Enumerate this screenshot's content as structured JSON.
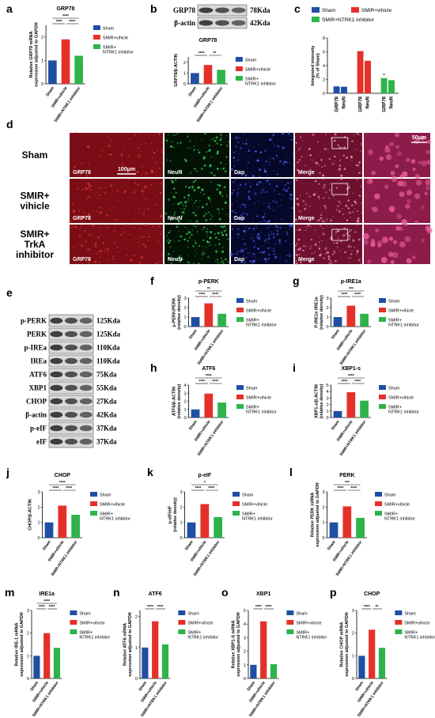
{
  "panel_labels": [
    "a",
    "b",
    "c",
    "d",
    "e",
    "f",
    "g",
    "h",
    "i",
    "j",
    "k",
    "l",
    "m",
    "n",
    "o",
    "p"
  ],
  "blot_b": [
    {
      "protein": "GRP78",
      "size": "78Kda"
    },
    {
      "protein": "β-actin",
      "size": "42Kda"
    }
  ],
  "images_d": {
    "rows": [
      "Sham",
      "SMIR+ vihicle",
      "SMIR+ TrkA inhibitor"
    ],
    "channels": [
      "GRP78",
      "NeuN",
      "Dap",
      "Merge"
    ],
    "scale_bars": [
      "100μm",
      "50μm"
    ]
  },
  "blot_e": [
    {
      "protein": "p-PERK",
      "size": "125Kda"
    },
    {
      "protein": "PERK",
      "size": "125Kda"
    },
    {
      "protein": "p-IREa",
      "size": "110Kda"
    },
    {
      "protein": "IREa",
      "size": "110Kda"
    },
    {
      "protein": "ATF6",
      "size": "75Kda"
    },
    {
      "protein": "XBP1",
      "size": "55Kda"
    },
    {
      "protein": "CHOP",
      "size": "27Kda"
    },
    {
      "protein": "β-actin",
      "size": "42Kda"
    },
    {
      "protein": "p-eIF",
      "size": "37Kda"
    },
    {
      "protein": "eIF",
      "size": "37Kda"
    }
  ],
  "chart_data": [
    {
      "type": "bar",
      "title": "GRP78",
      "y_label": "Relative GRP78 mRNA expression adjusted to GAPDH",
      "categories": [
        "Sham",
        "SMIR+vihicle",
        "SMIR+NTRK1 inhibitor"
      ],
      "values": [
        1,
        1.9,
        1.2
      ],
      "colors": [
        "#1f4fa3",
        "#e5302a",
        "#2db34a"
      ],
      "legend": [
        "Sham",
        "SMIR+vihicle",
        "SMIR+ NTRK1 inhibitor"
      ],
      "legend_position": "right",
      "ylim": [
        0,
        2.5
      ],
      "yticks": [
        0,
        1,
        2
      ],
      "significance": [
        "****",
        "****",
        "****"
      ]
    },
    {
      "type": "bar",
      "title": "GRP78",
      "y_label": "GRP78/β-ACTIN",
      "categories": [
        "Sham",
        "SMIR+vihicle",
        "SMIR+NTRK1 inhibitor"
      ],
      "values": [
        1,
        1.75,
        1.3
      ],
      "colors": [
        "#1f4fa3",
        "#e5302a",
        "#2db34a"
      ],
      "legend": [
        "Sham",
        "SMIR+vihicle",
        "SMIR+ NTRK1 inhibitor"
      ],
      "legend_position": "right",
      "ylim": [
        0,
        2.5
      ],
      "yticks": [
        0,
        1,
        2
      ],
      "significance": [
        "****",
        "**"
      ]
    },
    {
      "type": "grouped_bar",
      "y_label": "Integrated intensity (% of Sham)",
      "categories": [
        "GRP78",
        "NeuN"
      ],
      "series": [
        {
          "name": "Sham",
          "color": "#1f4fa3",
          "values": [
            1,
            0.95
          ]
        },
        {
          "name": "SMIR+vihicle",
          "color": "#e5302a",
          "values": [
            6.1,
            4.7
          ]
        },
        {
          "name": "SMIR+NTRK1 inhibitor",
          "color": "#2db34a",
          "values": [
            2.2,
            1.9
          ]
        }
      ],
      "legend_position": "top",
      "ylim": [
        0,
        8
      ],
      "yticks": [
        0,
        2,
        4,
        6,
        8
      ],
      "annotations": [
        {
          "series": 1,
          "index": 0,
          "text": "****"
        },
        {
          "series": 1,
          "index": 1,
          "text": "####"
        },
        {
          "series": 2,
          "index": 0,
          "text": "*"
        }
      ]
    },
    {
      "type": "bar",
      "title": "p-PERK",
      "y_label": "p-PERK/PERK (relative density)",
      "categories": [
        "Sham",
        "SMIR+vihicle",
        "SMIR+NTRK1 inhibitor"
      ],
      "values": [
        1,
        2.45,
        1.35
      ],
      "colors": [
        "#1f4fa3",
        "#e5302a",
        "#2db34a"
      ],
      "legend": [
        "Sham",
        "SMIR+vihicle",
        "SMIR+ NTRK1 inhibitor"
      ],
      "legend_position": "right",
      "ylim": [
        0,
        3
      ],
      "yticks": [
        0,
        1,
        2,
        3
      ],
      "significance": [
        "****",
        "****",
        "**"
      ]
    },
    {
      "type": "bar",
      "title": "p-IRE1a",
      "y_label": "P-IRE1a /IRE1a (relative density)",
      "categories": [
        "Sham",
        "SMIR+vihicle",
        "SMIR+NTRK1 inhibitor"
      ],
      "values": [
        1,
        2.2,
        1.35
      ],
      "colors": [
        "#1f4fa3",
        "#e5302a",
        "#2db34a"
      ],
      "legend": [
        "Sham",
        "SMIR+vihicle",
        "SMIR+ NTRK1 inhibitor"
      ],
      "legend_position": "right",
      "ylim": [
        0,
        3
      ],
      "yticks": [
        0,
        1,
        2,
        3
      ],
      "significance": [
        "****",
        "****",
        "***"
      ]
    },
    {
      "type": "bar",
      "title": "ATF6",
      "y_label": "ATF6/β-ACTIN (relative density)",
      "categories": [
        "Sham",
        "SMIR+vihicle",
        "SMIR+NTRK1 inhibitor"
      ],
      "values": [
        1,
        2.95,
        1.85
      ],
      "colors": [
        "#1f4fa3",
        "#e5302a",
        "#2db34a"
      ],
      "legend": [
        "Sham",
        "SMIR+vihicle",
        "SMIR+ NTRK1 inhibitor"
      ],
      "legend_position": "right",
      "ylim": [
        0,
        4
      ],
      "yticks": [
        0,
        1,
        2,
        3,
        4
      ],
      "significance": [
        "****",
        "****",
        "****"
      ]
    },
    {
      "type": "bar",
      "title": "XBP1-s",
      "y_label": "XBP1-s/β-ACTIN (relative density)",
      "categories": [
        "Sham",
        "SMIR+vihicle",
        "SMIR+NTRK1 inhibitor"
      ],
      "values": [
        1,
        3.9,
        2.6
      ],
      "colors": [
        "#1f4fa3",
        "#e5302a",
        "#2db34a"
      ],
      "legend": [
        "Sham",
        "SMIR+vihicle",
        "SMIR+ NTRK1 inhibitor"
      ],
      "legend_position": "right",
      "ylim": [
        0,
        5
      ],
      "yticks": [
        0,
        1,
        2,
        3,
        4,
        5
      ],
      "significance": [
        "****",
        "****",
        "****"
      ]
    },
    {
      "type": "bar",
      "title": "CHOP",
      "y_label": "CHOP/β-ACTIN",
      "categories": [
        "Sham",
        "SMIR+vihicle",
        "SMIR+NTRK1 inhibitor"
      ],
      "values": [
        1,
        2.1,
        1.5
      ],
      "colors": [
        "#1f4fa3",
        "#e5302a",
        "#2db34a"
      ],
      "legend": [
        "Sham",
        "SMIR+vihicle",
        "SMIR+ NTRK1 inhibitor"
      ],
      "legend_position": "right",
      "ylim": [
        0,
        3
      ],
      "yticks": [
        0,
        1,
        2,
        3
      ],
      "significance": [
        "****",
        "****",
        "****"
      ]
    },
    {
      "type": "bar",
      "title": "p-eIF",
      "y_label": "p-eIF/eIF (relative density)",
      "categories": [
        "Sham",
        "SMIR+vihicle",
        "SMIR+NTRK1 inhibitor"
      ],
      "values": [
        1,
        2.2,
        1.35
      ],
      "colors": [
        "#1f4fa3",
        "#e5302a",
        "#2db34a"
      ],
      "legend": [
        "Sham",
        "SMIR+vihicle",
        "SMIR+ NTRK1 inhibitor"
      ],
      "legend_position": "right",
      "ylim": [
        0,
        3
      ],
      "yticks": [
        0,
        1,
        2,
        3
      ],
      "significance": [
        "****",
        "****",
        "*"
      ]
    },
    {
      "type": "bar",
      "title": "PERK",
      "y_label": "Relative PERK mRNA expression adjusted to GAPDH",
      "categories": [
        "Sham",
        "SMIR+vihicle",
        "SMIR+NTRK1 inhibitor"
      ],
      "values": [
        1,
        2.05,
        1.3
      ],
      "colors": [
        "#1f4fa3",
        "#e5302a",
        "#2db34a"
      ],
      "legend": [
        "Sham",
        "SMIR+vihicle",
        "SMIR+ NTRK1 inhibitor"
      ],
      "legend_position": "right",
      "ylim": [
        0,
        3
      ],
      "yticks": [
        0,
        1,
        2,
        3
      ],
      "significance": [
        "****",
        "****",
        "***"
      ]
    },
    {
      "type": "bar",
      "title": "IRE1a",
      "y_label": "Relative IRE-1 mRNA expression adjusted to GAPDH",
      "categories": [
        "Sham",
        "SMIR+vihicle",
        "SMIR+NTRK1 inhibitor"
      ],
      "values": [
        1,
        2.0,
        1.35
      ],
      "colors": [
        "#1f4fa3",
        "#e5302a",
        "#2db34a"
      ],
      "legend": [
        "Sham",
        "SMIR+vihicle",
        "SMIR+ NTRK1 inhibitor"
      ],
      "legend_position": "right",
      "ylim": [
        0,
        3
      ],
      "yticks": [
        0,
        1,
        2,
        3
      ],
      "significance": [
        "****",
        "****",
        "****"
      ]
    },
    {
      "type": "bar",
      "title": "ATF6",
      "y_label": "Relative ATF6 mRNA expression adjusted to GAPDH",
      "categories": [
        "Sham",
        "SMIR+vihicle",
        "SMIR+NTRK1 inhibitor"
      ],
      "values": [
        1,
        1.85,
        1.1
      ],
      "colors": [
        "#1f4fa3",
        "#e5302a",
        "#2db34a"
      ],
      "legend": [
        "Sham",
        "SMIR+vihicle",
        "SMIR+ NTRK1 inhibitor"
      ],
      "legend_position": "right",
      "ylim": [
        0,
        2.2
      ],
      "yticks": [
        0,
        1,
        2
      ],
      "significance": [
        "****",
        "****"
      ]
    },
    {
      "type": "bar",
      "title": "XBP1",
      "y_label": "Relative XBP1-S mRNA expression adjusted to GAPDH",
      "categories": [
        "Sham",
        "SMIR+vihicle",
        "SMIR+NTRK1 inhibitor"
      ],
      "values": [
        1,
        4.2,
        1.05
      ],
      "colors": [
        "#1f4fa3",
        "#e5302a",
        "#2db34a"
      ],
      "legend": [
        "Sham",
        "SMIR+vihicle",
        "SMIR+ NTRK1 inhibitor"
      ],
      "legend_position": "right",
      "ylim": [
        0,
        5
      ],
      "yticks": [
        0,
        1,
        2,
        3,
        4,
        5
      ],
      "significance": [
        "****",
        "****"
      ]
    },
    {
      "type": "bar",
      "title": "CHOP",
      "y_label": "Relative CHOP mRNA expression adjusted to GAPDH",
      "categories": [
        "Sham",
        "SMIR+vihicle",
        "SMIR+NTRK1 inhibitor"
      ],
      "values": [
        1,
        2.15,
        1.35
      ],
      "colors": [
        "#1f4fa3",
        "#e5302a",
        "#2db34a"
      ],
      "legend": [
        "Sham",
        "SMIR+vihicle",
        "SMIR+ NTRK1 inhibitor"
      ],
      "legend_position": "right",
      "ylim": [
        0,
        3
      ],
      "yticks": [
        0,
        1,
        2,
        3
      ],
      "significance": [
        "****",
        "**"
      ]
    }
  ]
}
